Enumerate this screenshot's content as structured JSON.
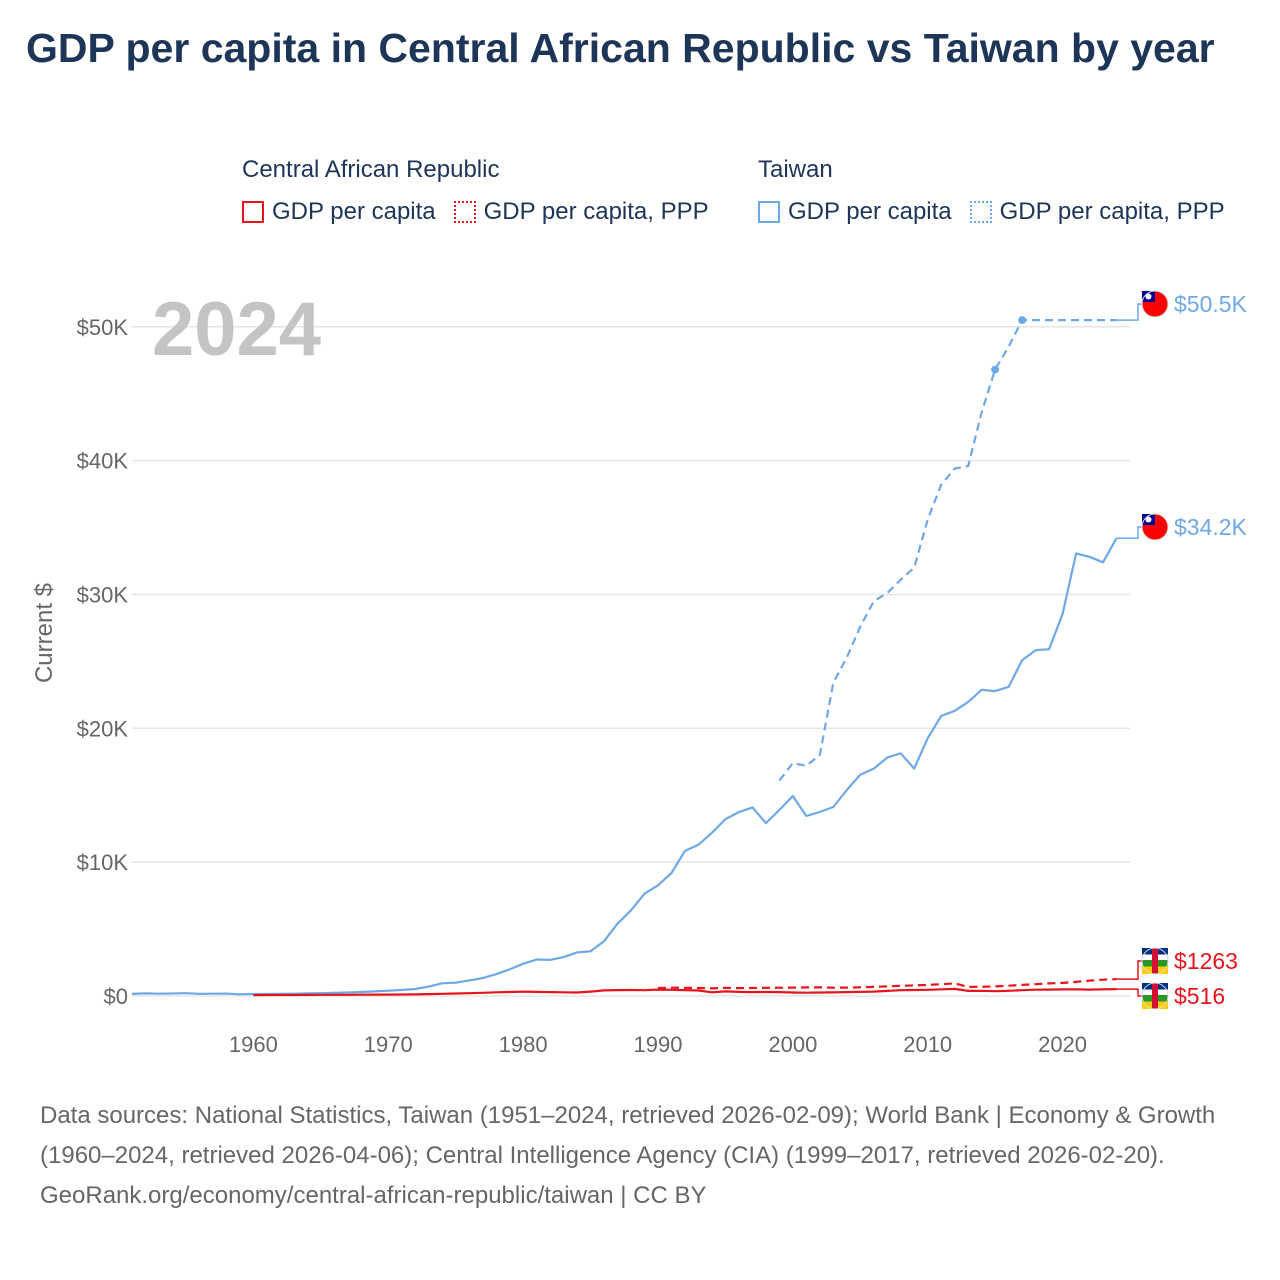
{
  "title": "GDP per capita in Central African Republic vs Taiwan by year",
  "legend": {
    "car": {
      "title": "Central African Republic",
      "gdp": "GDP per capita",
      "ppp": "GDP per capita, PPP"
    },
    "tw": {
      "title": "Taiwan",
      "gdp": "GDP per capita",
      "ppp": "GDP per capita, PPP"
    }
  },
  "year_label": "2024",
  "sources": {
    "text": "Data sources: National Statistics, Taiwan (1951–2024, retrieved 2026-02-09); World Bank | Economy & Growth (1960–2024, retrieved 2026-04-06); Central Intelligence Agency (CIA) (1999–2017, retrieved 2026-02-20).",
    "link": "GeoRank.org/economy/central-african-republic/taiwan | CC BY"
  },
  "colors": {
    "car": "#e8141c",
    "tw": "#6fa8e6",
    "grid": "#e6e6e6",
    "axis_text": "#666666",
    "year": "#c4c4c4"
  },
  "chart_data": {
    "type": "line",
    "ylabel": "Current $",
    "xlabel": "",
    "xlim": [
      1951,
      2025
    ],
    "ylim": [
      0,
      52000
    ],
    "x_ticks": [
      1960,
      1970,
      1980,
      1990,
      2000,
      2010,
      2020
    ],
    "y_ticks": [
      0,
      10000,
      20000,
      30000,
      40000,
      50000
    ],
    "y_tick_labels": [
      "$0",
      "$10K",
      "$20K",
      "$30K",
      "$40K",
      "$50K"
    ],
    "series": [
      {
        "name": "Taiwan GDP per capita",
        "country": "tw",
        "style": "solid",
        "end_label": "$34.2K",
        "points": [
          [
            1951,
            154
          ],
          [
            1952,
            196
          ],
          [
            1953,
            175
          ],
          [
            1954,
            188
          ],
          [
            1955,
            206
          ],
          [
            1956,
            156
          ],
          [
            1957,
            170
          ],
          [
            1958,
            176
          ],
          [
            1959,
            129
          ],
          [
            1960,
            153
          ],
          [
            1961,
            148
          ],
          [
            1962,
            159
          ],
          [
            1963,
            174
          ],
          [
            1964,
            200
          ],
          [
            1965,
            212
          ],
          [
            1966,
            233
          ],
          [
            1967,
            262
          ],
          [
            1968,
            299
          ],
          [
            1969,
            341
          ],
          [
            1970,
            393
          ],
          [
            1971,
            445
          ],
          [
            1972,
            526
          ],
          [
            1973,
            703
          ],
          [
            1974,
            948
          ],
          [
            1975,
            992
          ],
          [
            1976,
            1167
          ],
          [
            1977,
            1335
          ],
          [
            1978,
            1628
          ],
          [
            1979,
            1991
          ],
          [
            1980,
            2406
          ],
          [
            1981,
            2728
          ],
          [
            1982,
            2695
          ],
          [
            1983,
            2904
          ],
          [
            1984,
            3254
          ],
          [
            1985,
            3340
          ],
          [
            1986,
            4091
          ],
          [
            1987,
            5401
          ],
          [
            1988,
            6406
          ],
          [
            1989,
            7643
          ],
          [
            1990,
            8268
          ],
          [
            1991,
            9189
          ],
          [
            1992,
            10840
          ],
          [
            1993,
            11298
          ],
          [
            1994,
            12196
          ],
          [
            1995,
            13220
          ],
          [
            1996,
            13739
          ],
          [
            1997,
            14094
          ],
          [
            1998,
            12915
          ],
          [
            1999,
            13906
          ],
          [
            2000,
            14941
          ],
          [
            2001,
            13448
          ],
          [
            2002,
            13751
          ],
          [
            2003,
            14120
          ],
          [
            2004,
            15388
          ],
          [
            2005,
            16532
          ],
          [
            2006,
            16988
          ],
          [
            2007,
            17814
          ],
          [
            2008,
            18131
          ],
          [
            2009,
            16988
          ],
          [
            2010,
            19262
          ],
          [
            2011,
            20930
          ],
          [
            2012,
            21308
          ],
          [
            2013,
            21973
          ],
          [
            2014,
            22874
          ],
          [
            2015,
            22780
          ],
          [
            2016,
            23091
          ],
          [
            2017,
            25080
          ],
          [
            2018,
            25838
          ],
          [
            2019,
            25908
          ],
          [
            2020,
            28549
          ],
          [
            2021,
            33059
          ],
          [
            2022,
            32811
          ],
          [
            2023,
            32404
          ],
          [
            2024,
            34200
          ]
        ]
      },
      {
        "name": "Taiwan GDP per capita, PPP",
        "country": "tw",
        "style": "dashed",
        "end_label": "$50.5K",
        "points": [
          [
            1999,
            16100
          ],
          [
            2000,
            17400
          ],
          [
            2001,
            17200
          ],
          [
            2002,
            18000
          ],
          [
            2003,
            23400
          ],
          [
            2004,
            25300
          ],
          [
            2005,
            27600
          ],
          [
            2006,
            29500
          ],
          [
            2007,
            30100
          ],
          [
            2008,
            31100
          ],
          [
            2009,
            32000
          ],
          [
            2010,
            35600
          ],
          [
            2011,
            38200
          ],
          [
            2012,
            39400
          ],
          [
            2013,
            39600
          ],
          [
            2014,
            43600
          ],
          [
            2015,
            46800
          ],
          [
            2016,
            48500
          ],
          [
            2017,
            50500
          ],
          [
            2024,
            50500
          ]
        ]
      },
      {
        "name": "Central African Republic GDP per capita",
        "country": "car",
        "style": "solid",
        "end_label": "$516",
        "points": [
          [
            1960,
            70
          ],
          [
            1961,
            72
          ],
          [
            1962,
            76
          ],
          [
            1963,
            78
          ],
          [
            1964,
            82
          ],
          [
            1965,
            86
          ],
          [
            1966,
            90
          ],
          [
            1967,
            93
          ],
          [
            1968,
            100
          ],
          [
            1969,
            104
          ],
          [
            1970,
            106
          ],
          [
            1971,
            113
          ],
          [
            1972,
            120
          ],
          [
            1973,
            143
          ],
          [
            1974,
            162
          ],
          [
            1975,
            185
          ],
          [
            1976,
            210
          ],
          [
            1977,
            240
          ],
          [
            1978,
            275
          ],
          [
            1979,
            300
          ],
          [
            1980,
            330
          ],
          [
            1981,
            310
          ],
          [
            1982,
            290
          ],
          [
            1983,
            275
          ],
          [
            1984,
            260
          ],
          [
            1985,
            330
          ],
          [
            1986,
            420
          ],
          [
            1987,
            440
          ],
          [
            1988,
            450
          ],
          [
            1989,
            430
          ],
          [
            1990,
            480
          ],
          [
            1991,
            460
          ],
          [
            1992,
            440
          ],
          [
            1993,
            410
          ],
          [
            1994,
            280
          ],
          [
            1995,
            340
          ],
          [
            1996,
            310
          ],
          [
            1997,
            290
          ],
          [
            1998,
            300
          ],
          [
            1999,
            290
          ],
          [
            2000,
            260
          ],
          [
            2001,
            250
          ],
          [
            2002,
            260
          ],
          [
            2003,
            270
          ],
          [
            2004,
            290
          ],
          [
            2005,
            310
          ],
          [
            2006,
            330
          ],
          [
            2007,
            380
          ],
          [
            2008,
            430
          ],
          [
            2009,
            450
          ],
          [
            2010,
            460
          ],
          [
            2011,
            500
          ],
          [
            2012,
            530
          ],
          [
            2013,
            380
          ],
          [
            2014,
            390
          ],
          [
            2015,
            360
          ],
          [
            2016,
            390
          ],
          [
            2017,
            430
          ],
          [
            2018,
            470
          ],
          [
            2019,
            480
          ],
          [
            2020,
            490
          ],
          [
            2021,
            500
          ],
          [
            2022,
            480
          ],
          [
            2023,
            500
          ],
          [
            2024,
            516
          ]
        ]
      },
      {
        "name": "Central African Republic GDP per capita, PPP",
        "country": "car",
        "style": "dashed",
        "end_label": "$1263",
        "points": [
          [
            1990,
            600
          ],
          [
            1991,
            620
          ],
          [
            1992,
            610
          ],
          [
            1993,
            600
          ],
          [
            1994,
            570
          ],
          [
            1995,
            610
          ],
          [
            1996,
            590
          ],
          [
            1997,
            600
          ],
          [
            1998,
            610
          ],
          [
            1999,
            620
          ],
          [
            2000,
            630
          ],
          [
            2001,
            640
          ],
          [
            2002,
            650
          ],
          [
            2003,
            620
          ],
          [
            2004,
            630
          ],
          [
            2005,
            650
          ],
          [
            2006,
            680
          ],
          [
            2007,
            720
          ],
          [
            2008,
            760
          ],
          [
            2009,
            790
          ],
          [
            2010,
            830
          ],
          [
            2011,
            880
          ],
          [
            2012,
            940
          ],
          [
            2013,
            680
          ],
          [
            2014,
            690
          ],
          [
            2015,
            720
          ],
          [
            2016,
            770
          ],
          [
            2017,
            830
          ],
          [
            2018,
            880
          ],
          [
            2019,
            940
          ],
          [
            2020,
            980
          ],
          [
            2021,
            1050
          ],
          [
            2022,
            1150
          ],
          [
            2023,
            1220
          ],
          [
            2024,
            1263
          ]
        ]
      }
    ]
  }
}
